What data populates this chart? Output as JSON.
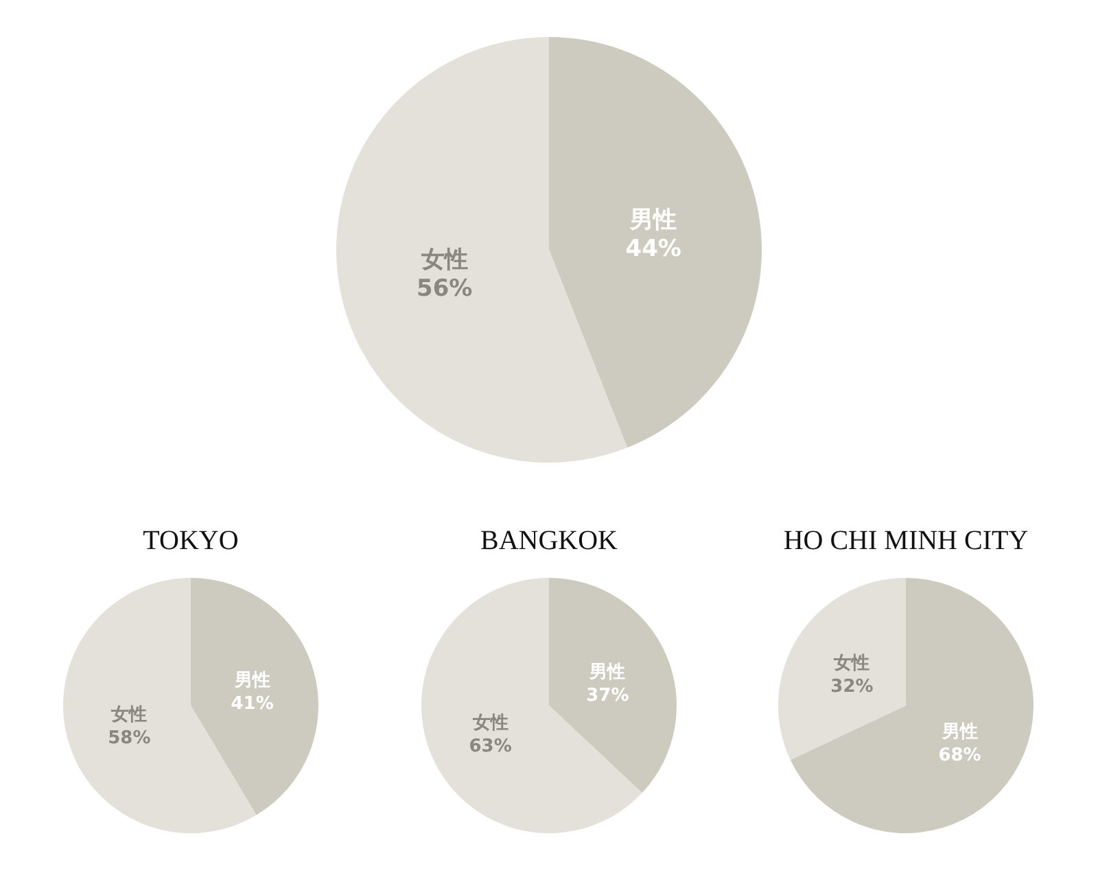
{
  "chart_data": [
    {
      "type": "pie",
      "categories": [
        "男性",
        "女性"
      ],
      "values": [
        44,
        56
      ],
      "value_labels": [
        "44%",
        "56%"
      ],
      "colors": [
        "#cdcabf",
        "#e4e1db"
      ]
    },
    {
      "type": "pie",
      "title": "TOKYO",
      "categories": [
        "男性",
        "女性"
      ],
      "values": [
        41,
        58
      ],
      "value_labels": [
        "41%",
        "58%"
      ],
      "colors": [
        "#cdcabf",
        "#e4e1db"
      ]
    },
    {
      "type": "pie",
      "title": "BANGKOK",
      "categories": [
        "男性",
        "女性"
      ],
      "values": [
        37,
        63
      ],
      "value_labels": [
        "37%",
        "63%"
      ],
      "colors": [
        "#cdcabf",
        "#e4e1db"
      ]
    },
    {
      "type": "pie",
      "title": "HO CHI MINH CITY",
      "categories": [
        "男性",
        "女性"
      ],
      "values": [
        68,
        32
      ],
      "value_labels": [
        "68%",
        "32%"
      ],
      "colors": [
        "#cdcabf",
        "#e4e1db"
      ]
    }
  ]
}
